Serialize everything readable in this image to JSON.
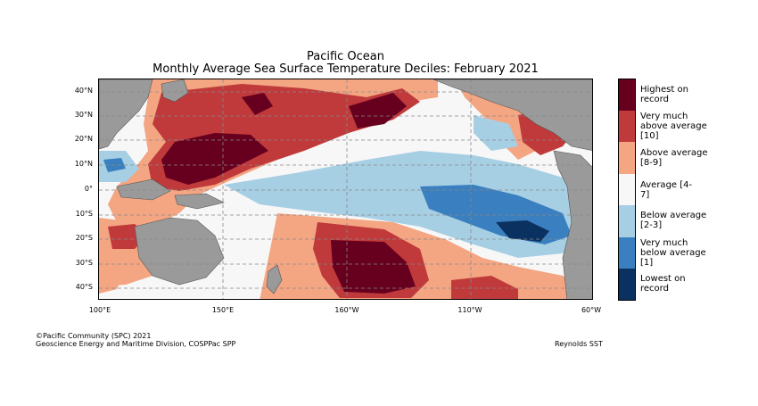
{
  "title": "Pacific Ocean",
  "subtitle": "Monthly Average Sea Surface Temperature Deciles: February 2021",
  "lat_labels": [
    "40°N",
    "30°N",
    "20°N",
    "10°N",
    "0°",
    "10°S",
    "20°S",
    "30°S",
    "40°S"
  ],
  "lon_labels": [
    "100°E",
    "150°E",
    "160°W",
    "110°W",
    "60°W"
  ],
  "legend": [
    {
      "label": "Highest on record",
      "color": "#67001f"
    },
    {
      "label": "Very much above average [10]",
      "color": "#c03a3b"
    },
    {
      "label": "Above average [8-9]",
      "color": "#f4a582"
    },
    {
      "label": "Average [4-7]",
      "color": "#f7f7f7"
    },
    {
      "label": "Below average [2-3]",
      "color": "#a7cfe4"
    },
    {
      "label": "Very much below average [1]",
      "color": "#3a7fbf"
    },
    {
      "label": "Lowest on record",
      "color": "#0b3160"
    }
  ],
  "land_color": "#9a9a9a",
  "footer": {
    "copyright": "©Pacific Community (SPC) 2021",
    "division": "Geoscience Energy and Maritime Division, COSPPac SPP",
    "source": "Reynolds SST"
  }
}
